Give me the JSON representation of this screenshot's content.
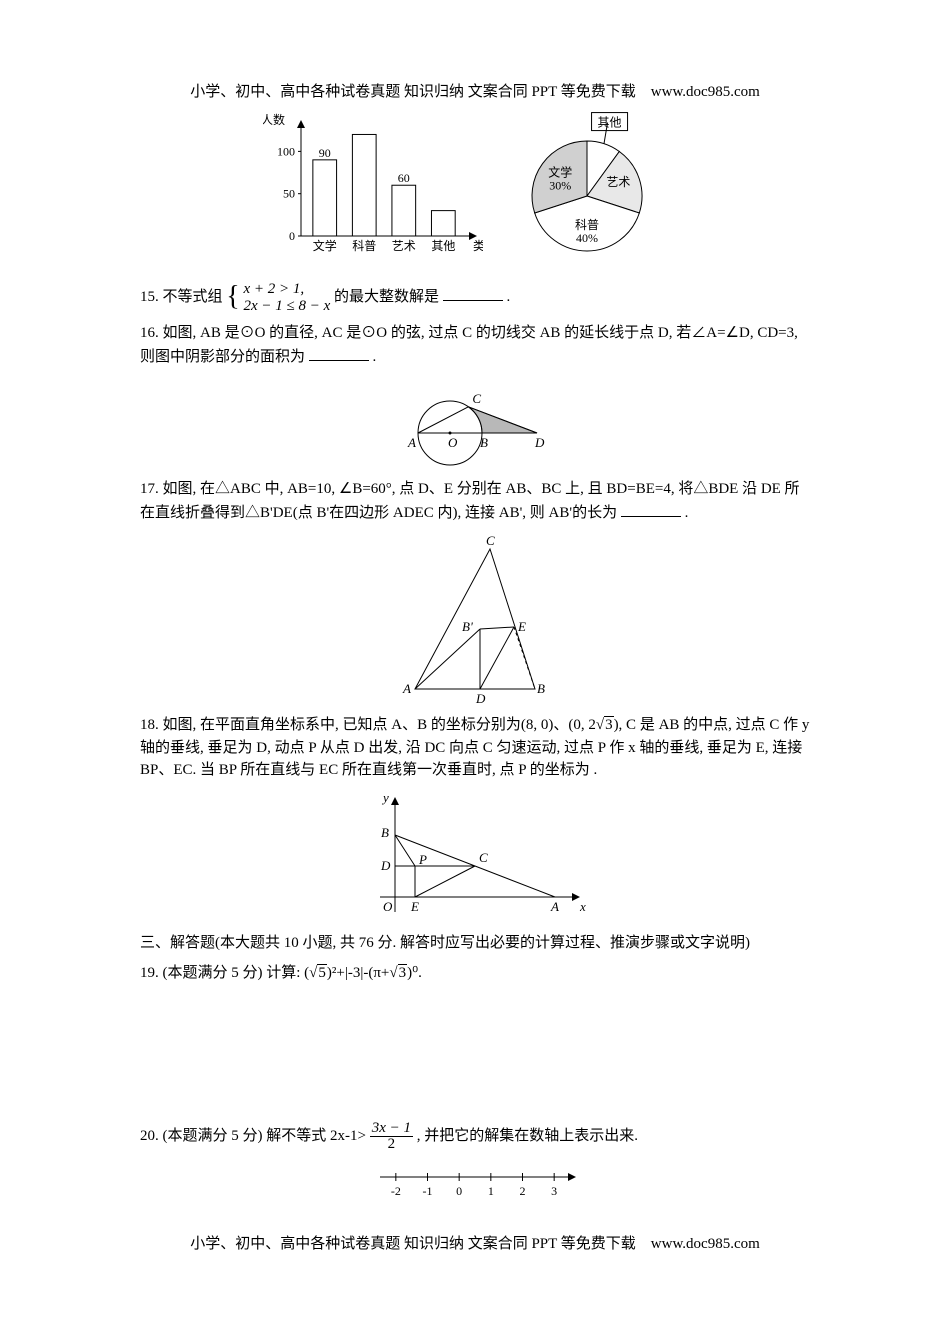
{
  "header_footer": "小学、初中、高中各种试卷真题 知识归纳 文案合同 PPT 等免费下载　www.doc985.com",
  "bar_chart": {
    "type": "bar",
    "categories": [
      "文学",
      "科普",
      "艺术",
      "其他"
    ],
    "values": [
      90,
      120,
      60,
      30
    ],
    "labels_shown": {
      "文学": "90",
      "艺术": "60"
    },
    "ylabel": "人数",
    "xlabel": "类别",
    "yticks": [
      0,
      50,
      100
    ],
    "ylim": [
      0,
      130
    ],
    "bar_color": "#ffffff",
    "bar_border": "#000000",
    "axis_color": "#000000",
    "background": "#ffffff",
    "bar_width": 0.6,
    "label_fontsize": 12,
    "title_fontsize": 12
  },
  "pie_chart": {
    "type": "pie",
    "slices": [
      {
        "label": "其他",
        "percent": 10,
        "color": "#ffffff"
      },
      {
        "label": "艺术",
        "percent": 20,
        "color": "#e8e8e8"
      },
      {
        "label": "科普\n40%",
        "percent": 40,
        "color": "#ffffff"
      },
      {
        "label": "文学\n30%",
        "percent": 30,
        "color": "#d0d0d0"
      }
    ],
    "border_color": "#000000",
    "label_fontsize": 12
  },
  "q15": {
    "prefix": "15. 不等式组",
    "line1": "x + 2 > 1,",
    "line2": "2x − 1 ≤ 8 − x",
    "suffix": "的最大整数解是",
    "period": "."
  },
  "q16": {
    "text": "16. 如图, AB 是⊙O 的直径, AC 是⊙O 的弦, 过点 C 的切线交 AB 的延长线于点 D, 若∠A=∠D, CD=3, 则图中阴影部分的面积为",
    "period": ".",
    "points": [
      "A",
      "O",
      "B",
      "C",
      "D"
    ]
  },
  "q17": {
    "text": "17. 如图, 在△ABC 中, AB=10, ∠B=60°, 点 D、E 分别在 AB、BC 上, 且 BD=BE=4, 将△BDE 沿 DE 所在直线折叠得到△B'DE(点 B'在四边形 ADEC 内), 连接 AB', 则 AB'的长为",
    "period": ".",
    "points": [
      "A",
      "B",
      "C",
      "D",
      "E",
      "B'"
    ]
  },
  "q18": {
    "text_part1": "18. 如图, 在平面直角坐标系中, 已知点 A、B 的坐标分别为(8, 0)、(0, 2",
    "sqrt_val": "3",
    "text_part2": "), C 是 AB 的中点, 过点 C 作 y 轴的垂线, 垂足为 D, 动点 P 从点 D 出发, 沿 DC 向点 C 匀速运动, 过点 P 作 x 轴的垂线, 垂足为 E, 连接 BP、EC. 当 BP 所在直线与 EC 所在直线第一次垂直时, 点 P 的坐标为",
    "period": ".",
    "points": [
      "O",
      "A",
      "B",
      "C",
      "D",
      "E",
      "P",
      "x",
      "y"
    ]
  },
  "section3": "三、解答题(本大题共 10 小题, 共 76 分. 解答时应写出必要的计算过程、推演步骤或文字说明)",
  "q19": {
    "prefix": "19. (本题满分 5 分) 计算: (",
    "sqrt_val": "5",
    "mid1": ")²+|-3|-(π+",
    "sqrt_val2": "3",
    "mid2": ")⁰."
  },
  "q20": {
    "prefix": "20. (本题满分 5 分) 解不等式 2x-1>",
    "frac_num": "3x − 1",
    "frac_den": "2",
    "suffix": ", 并把它的解集在数轴上表示出来.",
    "numberline": {
      "ticks": [
        -2,
        -1,
        0,
        1,
        2,
        3
      ],
      "min": -2.5,
      "max": 3.5
    }
  }
}
